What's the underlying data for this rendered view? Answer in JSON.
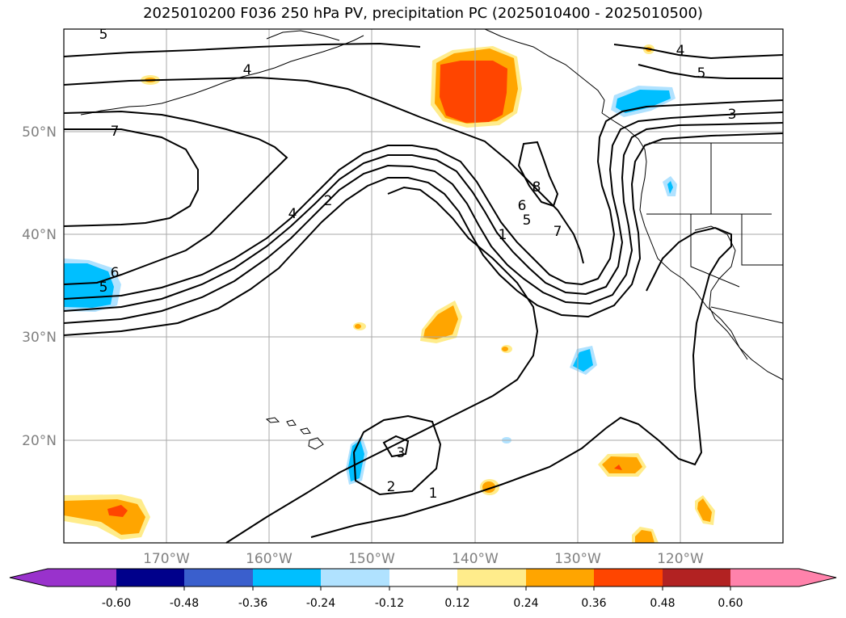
{
  "title": "2025010200 F036 250 hPa PV, precipitation PC (2025010400 - 2025010500)",
  "map": {
    "projection": "lat-lon",
    "extent": {
      "lon": [
        -180,
        -110
      ],
      "lat": [
        10,
        60
      ]
    },
    "lat_labels": [
      "50°N",
      "40°N",
      "30°N",
      "20°N"
    ],
    "lon_labels": [
      "170°W",
      "160°W",
      "150°W",
      "140°W",
      "130°W",
      "120°W"
    ],
    "pv_contour_labels": [
      "5",
      "4",
      "7",
      "6",
      "5",
      "4",
      "2",
      "8",
      "6",
      "5",
      "7",
      "1",
      "3",
      "2",
      "1",
      "5",
      "4",
      "3"
    ]
  },
  "colorbar": {
    "tick_labels": [
      "-0.60",
      "-0.48",
      "-0.36",
      "-0.24",
      "-0.12",
      "0.12",
      "0.24",
      "0.36",
      "0.48",
      "0.60"
    ],
    "colors": [
      "#9932cc",
      "#00008b",
      "#3a5fcd",
      "#00bfff",
      "#b0e2ff",
      "#ffffff",
      "#ffec8b",
      "#ffa500",
      "#ff4500",
      "#b22222",
      "#ff82ab"
    ]
  }
}
